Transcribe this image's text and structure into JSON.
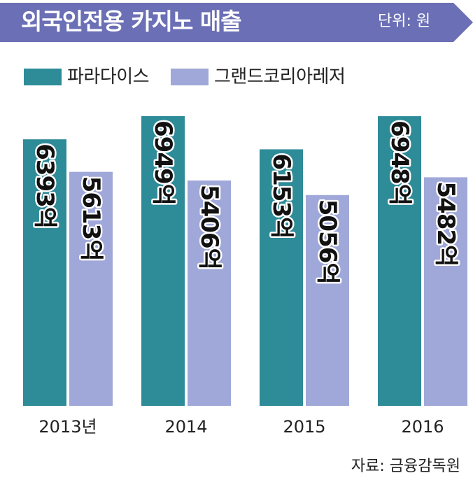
{
  "header": {
    "title": "외국인전용 카지노 매출",
    "unit": "단위: 원"
  },
  "source": "자료: 금융감독원",
  "colors": {
    "banner": "#6b6fb5",
    "paradise": "#2e8b98",
    "grandkorea": "#9fa8d8"
  },
  "chart_data": {
    "type": "bar",
    "categories": [
      "2013년",
      "2014",
      "2015",
      "2016"
    ],
    "series": [
      {
        "name": "파라다이스",
        "values": [
          6393,
          6949,
          6153,
          6948
        ],
        "labels": [
          "6393억",
          "6949억",
          "6153억",
          "6948억"
        ]
      },
      {
        "name": "그랜드코리아레저",
        "values": [
          5613,
          5406,
          5056,
          5482
        ],
        "labels": [
          "5613억",
          "5406억",
          "5056억",
          "5482억"
        ]
      }
    ],
    "unit": "억",
    "legend_position": "top-left",
    "grid": false
  }
}
